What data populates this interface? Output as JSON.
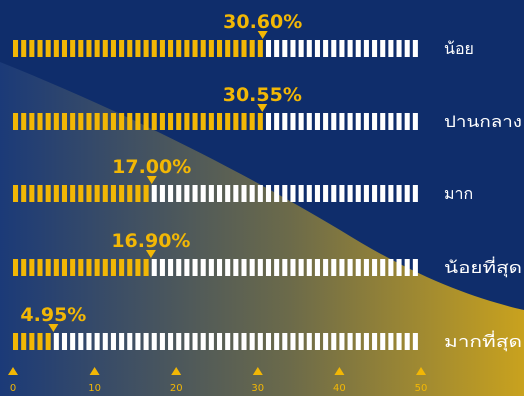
{
  "chart_data": {
    "type": "bar",
    "orientation": "horizontal",
    "categories": [
      "น้อย",
      "ปานกลาง",
      "มาก",
      "น้อยที่สุด",
      "มากที่สุด"
    ],
    "values": [
      30.6,
      30.55,
      17.0,
      16.9,
      4.95
    ],
    "value_labels": [
      "30.60%",
      "30.55%",
      "17.00%",
      "16.90%",
      "4.95%"
    ],
    "xlim": [
      0,
      50
    ],
    "x_ticks": [
      0,
      10,
      20,
      30,
      40,
      50
    ],
    "x_tick_labels": [
      "0",
      "10",
      "20",
      "30",
      "40",
      "50"
    ],
    "title": "",
    "xlabel": "",
    "ylabel": "",
    "grid": false,
    "legend": "none",
    "colors": {
      "background": "#0f2d6b",
      "fill": "#f2b705",
      "empty": "#ffffff",
      "label": "#f2b705",
      "category_text": "#ffffff"
    }
  }
}
